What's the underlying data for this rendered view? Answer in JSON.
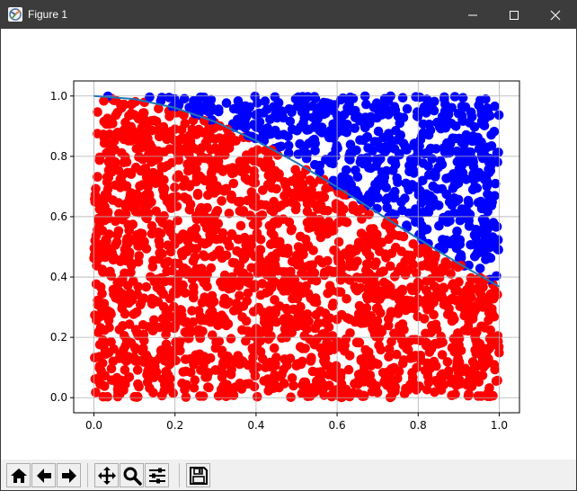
{
  "window": {
    "title": "Figure 1",
    "minimize_icon": "minimize-icon",
    "maximize_icon": "maximize-icon",
    "close_icon": "close-icon"
  },
  "toolbar": {
    "tools": [
      {
        "name": "home-button",
        "icon": "home-icon"
      },
      {
        "name": "back-button",
        "icon": "arrow-left-icon"
      },
      {
        "name": "forward-button",
        "icon": "arrow-right-icon"
      },
      {
        "name": "pan-button",
        "icon": "move-icon"
      },
      {
        "name": "zoom-button",
        "icon": "magnifier-icon"
      },
      {
        "name": "configure-subplots-button",
        "icon": "sliders-icon"
      },
      {
        "name": "save-button",
        "icon": "floppy-disk-icon"
      }
    ]
  },
  "colors": {
    "inside": "#ff0000",
    "outside": "#0000ff",
    "curve": "#1f77b4",
    "grid": "#b0b0b0"
  },
  "chart_data": {
    "type": "scatter",
    "title": "",
    "xlabel": "",
    "ylabel": "",
    "xlim": [
      -0.05,
      1.05
    ],
    "ylim": [
      -0.05,
      1.05
    ],
    "grid": true,
    "x_ticks": [
      0.0,
      0.2,
      0.4,
      0.6,
      0.8,
      1.0
    ],
    "y_ticks": [
      0.0,
      0.2,
      0.4,
      0.6,
      0.8,
      1.0
    ],
    "x_tick_labels": [
      "0.0",
      "0.2",
      "0.4",
      "0.6",
      "0.8",
      "1.0"
    ],
    "y_tick_labels": [
      "0.0",
      "0.2",
      "0.4",
      "0.6",
      "0.8",
      "1.0"
    ],
    "series": [
      {
        "color": "#ff0000",
        "region": "y <= exp(-x^2)"
      },
      {
        "color": "#0000ff",
        "region": "y > exp(-x^2)"
      }
    ],
    "curve": {
      "color": "#1f77b4",
      "x": [
        0.0,
        0.1,
        0.2,
        0.3,
        0.4,
        0.5,
        0.6,
        0.7,
        0.8,
        0.9,
        1.0
      ],
      "y": [
        1.0,
        0.99,
        0.961,
        0.914,
        0.852,
        0.779,
        0.698,
        0.613,
        0.527,
        0.445,
        0.368
      ]
    }
  }
}
